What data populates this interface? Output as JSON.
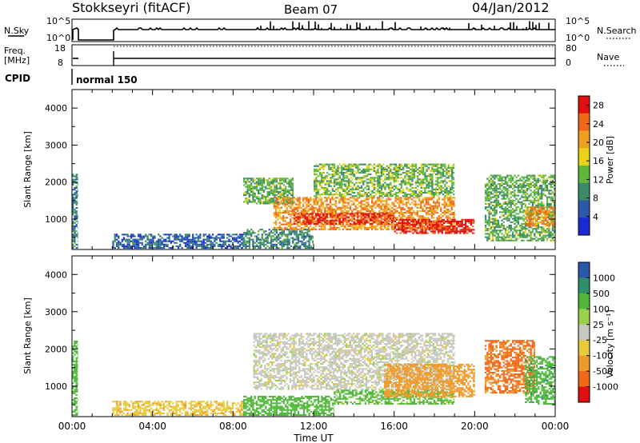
{
  "header": {
    "station": "Stokkseyri (fitACF)",
    "beam": "Beam 07",
    "date": "04/Jan/2012"
  },
  "status": {
    "nsky_label": "N.Sky",
    "nsky_ticks": [
      "10^5",
      "10^0"
    ],
    "nsearch_label": "N.Search",
    "nsearch_ticks": [
      "10^5",
      "10^0"
    ],
    "freq_label": "Freq.",
    "freq_unit": "[MHz]",
    "freq_ticks": [
      "18",
      "8"
    ],
    "nave_label": "Nave",
    "nave_ticks": [
      "80",
      "0"
    ],
    "cpid_label": "CPID",
    "cpid_text": "normal 150"
  },
  "colors": {
    "power": [
      "#1a2bd6",
      "#2c58a8",
      "#3b8a6a",
      "#5fb83a",
      "#e8d21a",
      "#f0a020",
      "#f06818",
      "#e01010"
    ],
    "velocity": [
      "#e01010",
      "#f06818",
      "#f09a2a",
      "#e8c93a",
      "#c8c8c0",
      "#9ad04a",
      "#4fb83a",
      "#2f8f6a",
      "#2c58a8"
    ]
  },
  "chart_data": [
    {
      "type": "heatmap",
      "panel": "power",
      "ylabel": "Slant Range [km]",
      "xlabel": "",
      "xlim": [
        0,
        24
      ],
      "ylim": [
        180,
        4500
      ],
      "x_ticks": [
        "00:00",
        "04:00",
        "08:00",
        "12:00",
        "16:00",
        "20:00",
        "00:00"
      ],
      "y_ticks": [
        "1000",
        "2000",
        "3000",
        "4000"
      ],
      "colorbar": {
        "label": "Power [dB]",
        "ticks": [
          "4",
          "8",
          "12",
          "16",
          "20",
          "24",
          "28"
        ],
        "range": [
          0,
          30
        ]
      },
      "echo_regions": [
        {
          "t_start": 0.0,
          "t_end": 0.3,
          "range_low": 200,
          "range_high": 2200,
          "value": 8
        },
        {
          "t_start": 2.0,
          "t_end": 8.5,
          "range_low": 200,
          "range_high": 600,
          "value": 6
        },
        {
          "t_start": 8.5,
          "t_end": 12.0,
          "range_low": 200,
          "range_high": 700,
          "value": 9
        },
        {
          "t_start": 8.5,
          "t_end": 11.0,
          "range_low": 1400,
          "range_high": 2100,
          "value": 12
        },
        {
          "t_start": 10.0,
          "t_end": 19.0,
          "range_low": 700,
          "range_high": 1600,
          "value": 22
        },
        {
          "t_start": 11.0,
          "t_end": 16.0,
          "range_low": 850,
          "range_high": 1150,
          "value": 28
        },
        {
          "t_start": 16.0,
          "t_end": 20.0,
          "range_low": 600,
          "range_high": 1000,
          "value": 28
        },
        {
          "t_start": 12.0,
          "t_end": 19.0,
          "range_low": 1600,
          "range_high": 2500,
          "value": 13
        },
        {
          "t_start": 20.5,
          "t_end": 24.0,
          "range_low": 400,
          "range_high": 2200,
          "value": 12
        },
        {
          "t_start": 22.5,
          "t_end": 24.0,
          "range_low": 800,
          "range_high": 1300,
          "value": 22
        }
      ]
    },
    {
      "type": "heatmap",
      "panel": "velocity",
      "ylabel": "Slant Range [km]",
      "xlabel": "Time UT",
      "xlim": [
        0,
        24
      ],
      "ylim": [
        180,
        4500
      ],
      "x_ticks": [
        "00:00",
        "04:00",
        "08:00",
        "12:00",
        "16:00",
        "20:00",
        "00:00"
      ],
      "y_ticks": [
        "1000",
        "2000",
        "3000",
        "4000"
      ],
      "colorbar": {
        "label": "Velocity [m s⁻¹]",
        "ticks": [
          "1000",
          "500",
          "100",
          "25",
          "-25",
          "-100",
          "-500",
          "-1000"
        ]
      },
      "echo_regions": [
        {
          "t_start": 0.0,
          "t_end": 0.3,
          "range_low": 200,
          "range_high": 2200,
          "value": 300
        },
        {
          "t_start": 2.0,
          "t_end": 8.5,
          "range_low": 200,
          "range_high": 600,
          "value": -80
        },
        {
          "t_start": 8.5,
          "t_end": 13.0,
          "range_low": 200,
          "range_high": 700,
          "value": 150
        },
        {
          "t_start": 9.0,
          "t_end": 19.0,
          "range_low": 900,
          "range_high": 2400,
          "value": 0
        },
        {
          "t_start": 13.0,
          "t_end": 19.0,
          "range_low": 500,
          "range_high": 900,
          "value": 120
        },
        {
          "t_start": 15.5,
          "t_end": 20.0,
          "range_low": 700,
          "range_high": 1600,
          "value": -300
        },
        {
          "t_start": 20.5,
          "t_end": 23.0,
          "range_low": 800,
          "range_high": 2200,
          "value": -600
        },
        {
          "t_start": 22.5,
          "t_end": 24.0,
          "range_low": 500,
          "range_high": 1800,
          "value": 400
        }
      ]
    }
  ]
}
